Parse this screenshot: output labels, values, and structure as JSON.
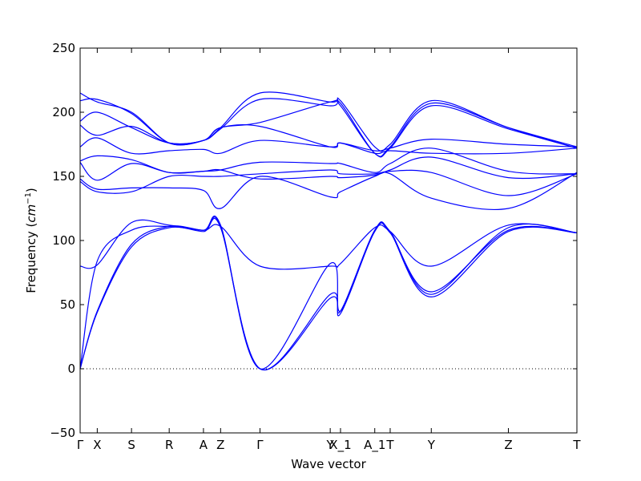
{
  "chart_data": {
    "type": "line",
    "xlabel": "Wave vector",
    "ylabel": "Frequency",
    "ylabel_unit": "cm",
    "ylabel_unit_exp": "−1",
    "ylim": [
      -50,
      250
    ],
    "yticks": [
      -50,
      0,
      50,
      100,
      150,
      200,
      250
    ],
    "xlim": [
      0,
      29
    ],
    "zero_line": true,
    "line_color": "#0000ff",
    "xticks": [
      {
        "label": "Γ",
        "x": 0
      },
      {
        "label": "X",
        "x": 1
      },
      {
        "label": "S",
        "x": 3
      },
      {
        "label": "R",
        "x": 5.2
      },
      {
        "label": "A",
        "x": 7.2
      },
      {
        "label": "Z",
        "x": 8.2
      },
      {
        "label": "Γ",
        "x": 10.5
      },
      {
        "label": "Y",
        "x": 14.6
      },
      {
        "label": "X_1",
        "x": 15.2
      },
      {
        "label": "A_1",
        "x": 17.2
      },
      {
        "label": "T",
        "x": 18.1
      },
      {
        "label": "Y",
        "x": 20.5
      },
      {
        "label": "Z",
        "x": 25
      },
      {
        "label": "T",
        "x": 29
      }
    ],
    "x": [
      0,
      1,
      3,
      5.2,
      7.2,
      8.2,
      10.5,
      14.6,
      15.2,
      17.2,
      18.1,
      20.5,
      25,
      29
    ],
    "series": [
      {
        "values": [
          0,
          45,
          97,
          111,
          108,
          111,
          0,
          58,
          45,
          108,
          106,
          60,
          108,
          106
        ]
      },
      {
        "values": [
          0,
          44,
          95,
          110,
          107,
          110,
          0,
          55,
          43,
          107,
          106,
          56,
          107,
          106
        ]
      },
      {
        "values": [
          0,
          84,
          108,
          111,
          108,
          112,
          0,
          82,
          45,
          108,
          107,
          58,
          110,
          106
        ]
      },
      {
        "values": [
          80,
          81,
          114,
          112,
          108,
          111,
          80,
          80,
          82,
          110,
          107,
          80,
          112,
          106
        ]
      },
      {
        "values": [
          148,
          140,
          141,
          141,
          139,
          125,
          150,
          134,
          138,
          150,
          152,
          133,
          125,
          153
        ]
      },
      {
        "values": [
          146,
          138,
          138,
          150,
          150,
          150,
          152,
          155,
          152,
          152,
          154,
          153,
          135,
          152
        ]
      },
      {
        "values": [
          161,
          147,
          160,
          153,
          154,
          155,
          148,
          150,
          149,
          151,
          155,
          165,
          149,
          152
        ]
      },
      {
        "values": [
          162,
          166,
          163,
          153,
          154,
          155,
          161,
          160,
          160,
          153,
          160,
          172,
          154,
          152
        ]
      },
      {
        "values": [
          173,
          180,
          168,
          170,
          171,
          168,
          178,
          173,
          176,
          168,
          170,
          168,
          168,
          172
        ]
      },
      {
        "values": [
          190,
          182,
          189,
          176,
          178,
          188,
          189,
          173,
          176,
          170,
          172,
          179,
          175,
          173
        ]
      },
      {
        "values": [
          193,
          200,
          188,
          176,
          178,
          188,
          192,
          208,
          205,
          168,
          173,
          207,
          188,
          173
        ]
      },
      {
        "values": [
          209,
          210,
          199,
          176,
          178,
          188,
          215,
          208,
          209,
          173,
          175,
          209,
          188,
          172
        ]
      },
      {
        "values": [
          215,
          208,
          200,
          176,
          178,
          187,
          210,
          205,
          207,
          168,
          172,
          205,
          187,
          172
        ]
      }
    ]
  }
}
